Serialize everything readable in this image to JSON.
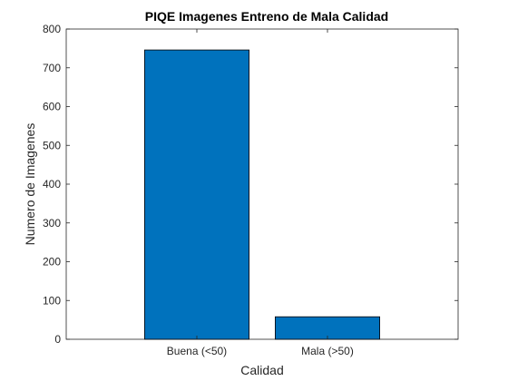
{
  "chart_data": {
    "type": "bar",
    "title": "PIQE Imagenes Entreno de Mala Calidad",
    "xlabel": "Calidad",
    "ylabel": "Numero de Imagenes",
    "categories": [
      "Buena (<50)",
      "Mala (>50)"
    ],
    "values": [
      746,
      58
    ],
    "ylim": [
      0,
      800
    ],
    "yticks": [
      0,
      100,
      200,
      300,
      400,
      500,
      600,
      700,
      800
    ],
    "grid": false,
    "legend": "none",
    "bar_color": "#0072BD",
    "bar_edge_color": "#000000"
  }
}
